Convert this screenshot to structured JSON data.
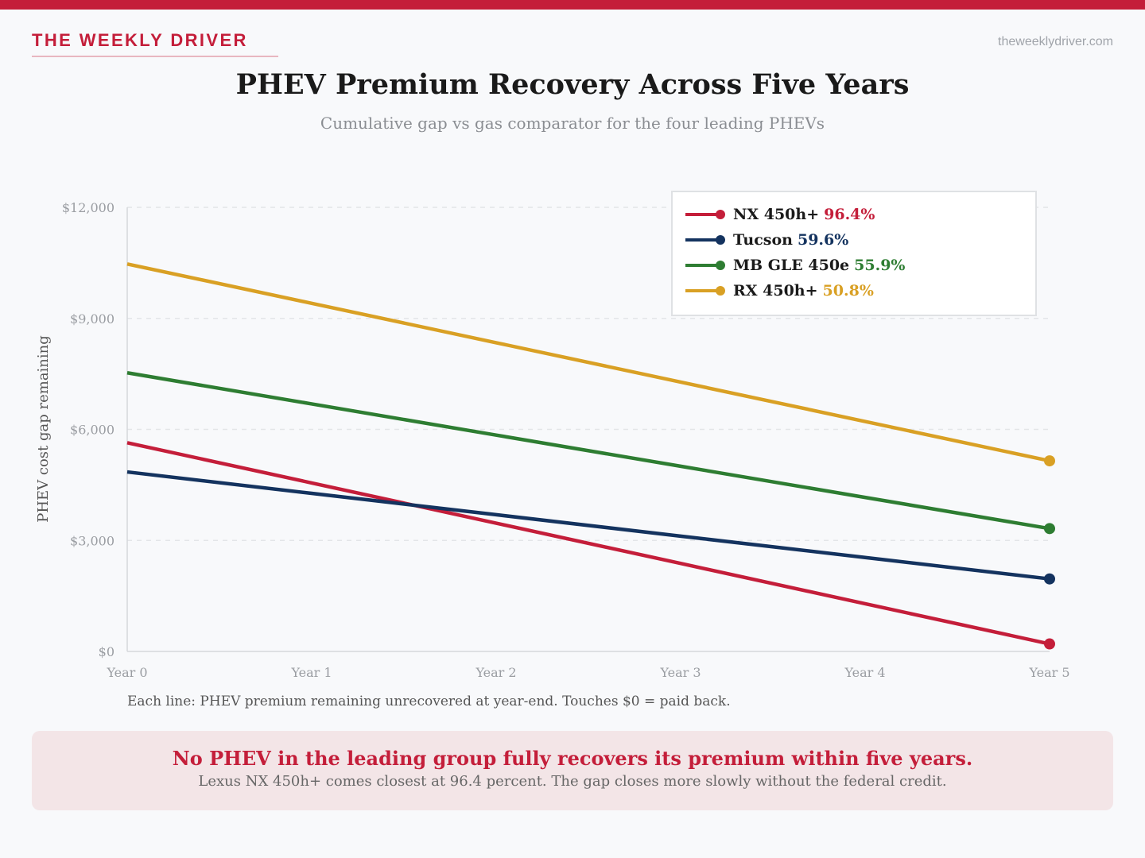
{
  "header": {
    "brand": "THE WEEKLY DRIVER",
    "site": "theweeklydriver.com"
  },
  "chart_data": {
    "type": "line",
    "title": "PHEV Premium Recovery Across Five Years",
    "subtitle": "Cumulative gap vs gas comparator for the four leading PHEVs",
    "xlabel": "",
    "ylabel": "PHEV cost gap remaining",
    "categories": [
      "Year 0",
      "Year 1",
      "Year 2",
      "Year 3",
      "Year 4",
      "Year 5"
    ],
    "yticks": [
      0,
      3000,
      6000,
      9000,
      12000
    ],
    "ytick_labels": [
      "$0",
      "$3,000",
      "$6,000",
      "$9,000",
      "$12,000"
    ],
    "ylim": [
      0,
      12000
    ],
    "grid": true,
    "legend_position": "top-right",
    "series": [
      {
        "name": "NX 450h+",
        "pct": "96.4%",
        "color": "#c41e3a",
        "values": [
          5640,
          4553,
          3465,
          2378,
          1290,
          203
        ]
      },
      {
        "name": "Tucson",
        "pct": "59.6%",
        "color": "#14335f",
        "values": [
          4850,
          4272,
          3694,
          3116,
          2538,
          1960
        ]
      },
      {
        "name": "MB GLE 450e",
        "pct": "55.9%",
        "color": "#2e7d32",
        "values": [
          7530,
          6688,
          5846,
          5004,
          4162,
          3320
        ]
      },
      {
        "name": "RX 450h+",
        "pct": "50.8%",
        "color": "#d9a024",
        "values": [
          10470,
          9406,
          8342,
          7278,
          6214,
          5150
        ]
      }
    ],
    "note": "Each line: PHEV premium remaining unrecovered at year-end. Touches $0 = paid back."
  },
  "callout": {
    "headline": "No PHEV in the leading group fully recovers its premium within five years.",
    "body": "Lexus NX 450h+ comes closest at 96.4 percent. The gap closes more slowly without the federal credit."
  }
}
